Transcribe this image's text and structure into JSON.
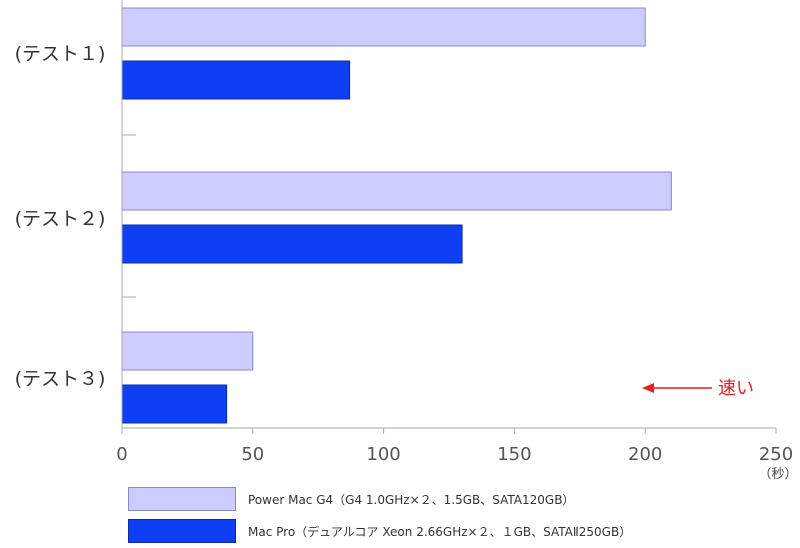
{
  "chart_data": {
    "type": "bar",
    "orientation": "horizontal",
    "categories": [
      "(テスト１)",
      "(テスト２)",
      "(テスト３)"
    ],
    "series": [
      {
        "name": "Power Mac G4（G4 1.0GHz×２、1.5GB、SATA120GB）",
        "values": [
          200,
          210,
          50
        ],
        "color": "#ccccff",
        "stroke": "#8888cc"
      },
      {
        "name": "Mac Pro（デュアルコア Xeon 2.66GHz×２、１GB、SATAⅡ250GB）",
        "values": [
          87,
          130,
          40
        ],
        "color": "#0f3ff5",
        "stroke": "#0a2ca8"
      }
    ],
    "xlim": [
      0,
      250
    ],
    "xticks": [
      0,
      50,
      100,
      150,
      200,
      250
    ],
    "xtick_labels": [
      "0",
      "50",
      "100",
      "150",
      "200",
      "250"
    ],
    "x_unit": "（秒）",
    "annotation": {
      "text": "速い",
      "direction": "left",
      "color": "#ee1c1c"
    },
    "legend_position": "bottom",
    "grid": false
  }
}
